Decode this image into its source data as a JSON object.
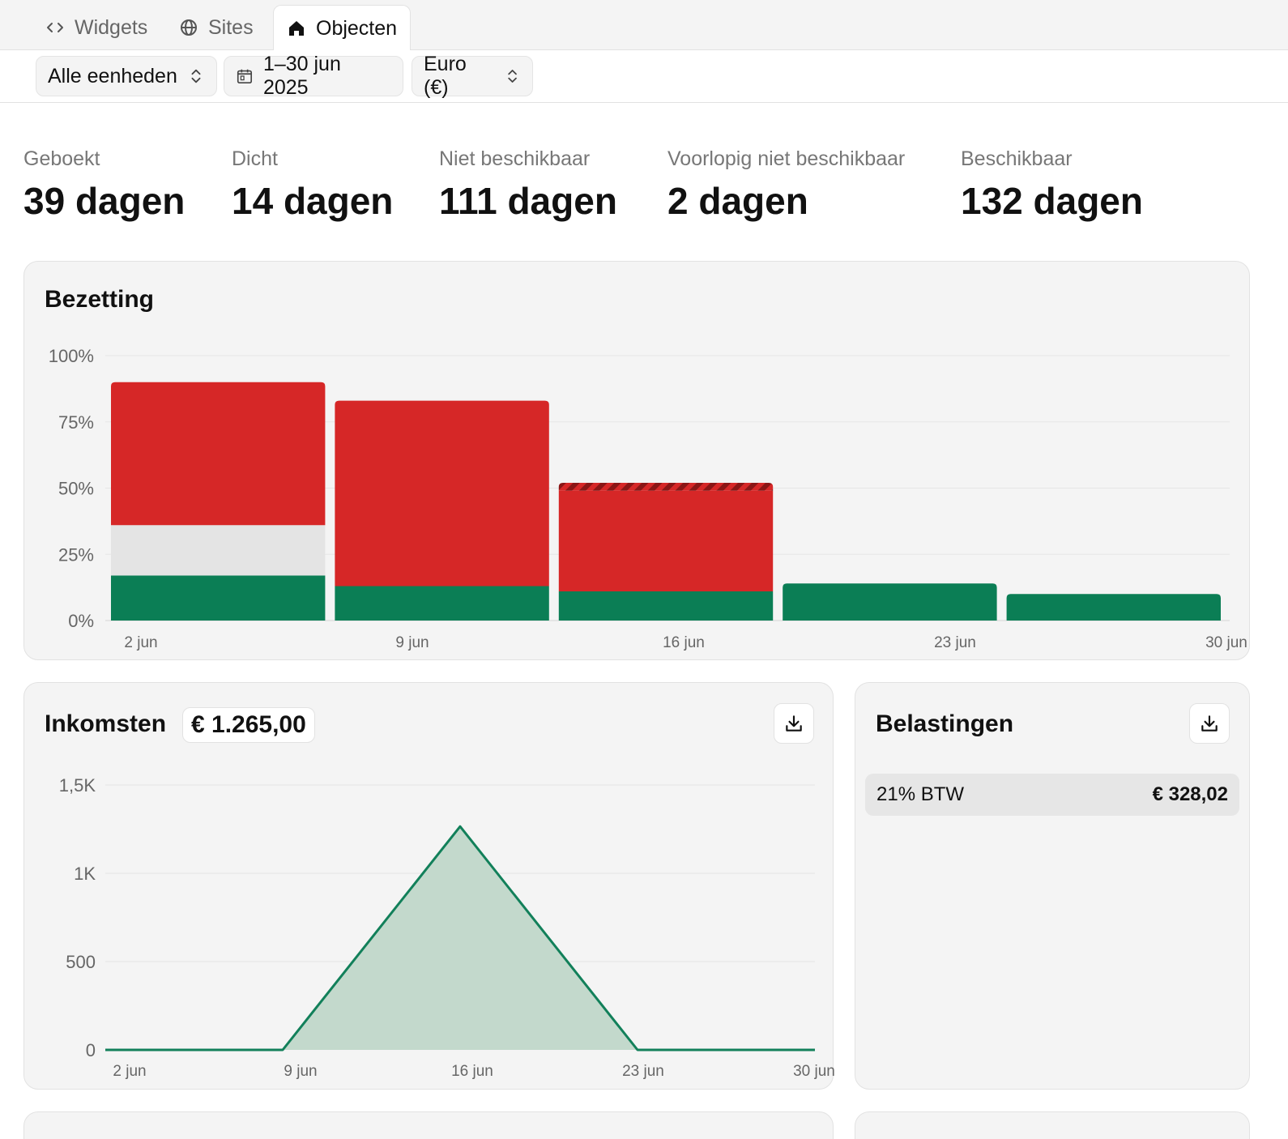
{
  "tabs": [
    {
      "label": "Widgets",
      "icon": "code-icon",
      "active": false
    },
    {
      "label": "Sites",
      "icon": "globe-icon",
      "active": false
    },
    {
      "label": "Objecten",
      "icon": "home-icon",
      "active": true
    }
  ],
  "filters": {
    "unit": "Alle eenheden",
    "date_range": "1–30 jun 2025",
    "currency": "Euro (€)"
  },
  "stats": [
    {
      "label": "Geboekt",
      "value": "39 dagen"
    },
    {
      "label": "Dicht",
      "value": "14 dagen"
    },
    {
      "label": "Niet beschikbaar",
      "value": "111 dagen"
    },
    {
      "label": "Voorlopig niet beschikbaar",
      "value": "2 dagen"
    },
    {
      "label": "Beschikbaar",
      "value": "132 dagen"
    }
  ],
  "occupancy": {
    "title": "Bezetting"
  },
  "income": {
    "title": "Inkomsten",
    "total": "€ 1.265,00"
  },
  "taxes": {
    "title": "Belastingen",
    "rows": [
      {
        "label": "21% BTW",
        "amount": "€ 328,02"
      }
    ]
  },
  "colors": {
    "booked": "#0b7e55",
    "closed": "#e4e4e4",
    "unavailable": "#d62727",
    "income_line": "#12805a",
    "income_fill": "#c3d9cc"
  },
  "chart_data": [
    {
      "type": "bar",
      "title": "Bezetting",
      "stacked": true,
      "x_ticks": [
        "2 jun",
        "9 jun",
        "16 jun",
        "23 jun",
        "30 jun"
      ],
      "y_ticks": [
        "0%",
        "25%",
        "50%",
        "75%",
        "100%"
      ],
      "ylim": [
        0,
        100
      ],
      "grid": true,
      "series": [
        {
          "key": "booked",
          "values": [
            17,
            13,
            11,
            14,
            10
          ]
        },
        {
          "key": "closed",
          "values": [
            19,
            0,
            0,
            0,
            0
          ]
        },
        {
          "key": "unavailable",
          "values": [
            54,
            70,
            38,
            0,
            0
          ]
        },
        {
          "key": "tentative",
          "values": [
            0,
            0,
            3,
            0,
            0
          ]
        }
      ]
    },
    {
      "type": "area",
      "title": "Inkomsten",
      "x": [
        "2 jun",
        "9 jun",
        "16 jun",
        "23 jun",
        "30 jun"
      ],
      "y_ticks": [
        "0",
        "500",
        "1K",
        "1,5K"
      ],
      "ylim": [
        0,
        1500
      ],
      "grid": true,
      "values": [
        0,
        0,
        1265,
        0,
        0
      ]
    }
  ]
}
